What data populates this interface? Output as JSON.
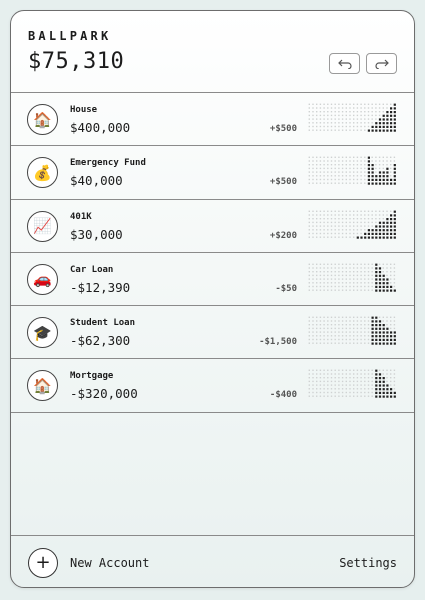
{
  "app": {
    "brand": "BALLPARK",
    "total": "$75,310"
  },
  "header": {
    "undo_icon": "undo-arrow",
    "redo_icon": "redo-arrow"
  },
  "accounts": [
    {
      "name": "House",
      "value": "$400,000",
      "delta": "+$500",
      "icon": "🏠",
      "icon_name": "house-icon",
      "trend": [
        0,
        0,
        0,
        0,
        0,
        0,
        0,
        0,
        0,
        0,
        0,
        0,
        0,
        0,
        0,
        0,
        1,
        2,
        3,
        4,
        5,
        6,
        7,
        8
      ]
    },
    {
      "name": "Emergency Fund",
      "value": "$40,000",
      "delta": "+$500",
      "icon": "💰",
      "icon_name": "money-bag-icon",
      "trend": [
        0,
        0,
        0,
        0,
        0,
        0,
        0,
        0,
        0,
        0,
        0,
        0,
        0,
        0,
        0,
        0,
        8,
        6,
        3,
        4,
        4,
        5,
        2,
        6
      ]
    },
    {
      "name": "401K",
      "value": "$30,000",
      "delta": "+$200",
      "icon": "📈",
      "icon_name": "chart-increasing-icon",
      "trend": [
        0,
        0,
        0,
        0,
        0,
        0,
        0,
        0,
        0,
        0,
        0,
        0,
        0,
        1,
        1,
        2,
        3,
        3,
        4,
        5,
        5,
        6,
        7,
        8
      ]
    },
    {
      "name": "Car Loan",
      "value": "-$12,390",
      "delta": "-$50",
      "icon": "🚗",
      "icon_name": "car-icon",
      "trend": [
        0,
        0,
        0,
        0,
        0,
        0,
        0,
        0,
        0,
        0,
        0,
        0,
        0,
        0,
        0,
        0,
        0,
        0,
        8,
        7,
        5,
        4,
        2,
        1
      ]
    },
    {
      "name": "Student Loan",
      "value": "-$62,300",
      "delta": "-$1,500",
      "icon": "🎓",
      "icon_name": "graduation-cap-icon",
      "trend": [
        0,
        0,
        0,
        0,
        0,
        0,
        0,
        0,
        0,
        0,
        0,
        0,
        0,
        0,
        0,
        0,
        0,
        8,
        8,
        7,
        6,
        5,
        4,
        4
      ]
    },
    {
      "name": "Mortgage",
      "value": "-$320,000",
      "delta": "-$400",
      "icon": "🏠",
      "icon_name": "house-icon",
      "trend": [
        0,
        0,
        0,
        0,
        0,
        0,
        0,
        0,
        0,
        0,
        0,
        0,
        0,
        0,
        0,
        0,
        0,
        0,
        8,
        7,
        6,
        4,
        3,
        2
      ]
    }
  ],
  "footer": {
    "add_icon": "+",
    "new_account": "New Account",
    "settings": "Settings"
  },
  "colors": {
    "dot_on": "#222222",
    "dot_off": "#cfd2d2",
    "border": "#6d6d6d"
  }
}
